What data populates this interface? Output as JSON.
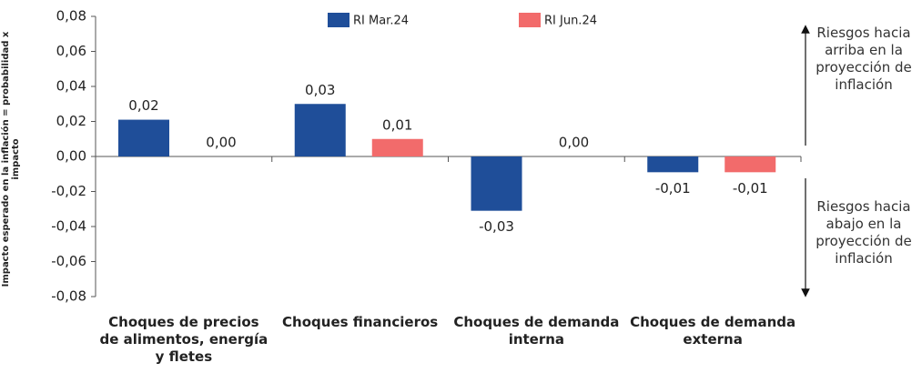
{
  "chart_data": {
    "type": "bar",
    "y_label": "Impacto esperado en la inflación = probabilidad x impacto",
    "categories": [
      "Choques de precios de alimentos, energía y fletes",
      "Choques financieros",
      "Choques de demanda interna",
      "Choques de demanda externa"
    ],
    "series": [
      {
        "name": "RI Mar.24",
        "color": "#1f4e99",
        "values": [
          0.021,
          0.03,
          -0.031,
          -0.009
        ],
        "value_labels": [
          "0,02",
          "0,03",
          "-0,03",
          "-0,01"
        ]
      },
      {
        "name": "RI Jun.24",
        "color": "#f26b6b",
        "values": [
          0.0,
          0.01,
          0.0,
          -0.009
        ],
        "value_labels": [
          "0,00",
          "0,01",
          "0,00",
          "-0,01"
        ]
      }
    ],
    "ylim": [
      -0.08,
      0.08
    ],
    "yticks": [
      {
        "value": -0.08,
        "label": "-0,08"
      },
      {
        "value": -0.06,
        "label": "-0,06"
      },
      {
        "value": -0.04,
        "label": "-0,04"
      },
      {
        "value": -0.02,
        "label": "-0,02"
      },
      {
        "value": 0,
        "label": "0,00"
      },
      {
        "value": 0.02,
        "label": "0,02"
      },
      {
        "value": 0.04,
        "label": "0,04"
      },
      {
        "value": 0.06,
        "label": "0,06"
      },
      {
        "value": 0.08,
        "label": "0,08"
      }
    ],
    "annotations": [
      "Riesgos hacia arriba en la proyección de inflación",
      "Riesgos hacia abajo en la proyección de inflación"
    ]
  }
}
